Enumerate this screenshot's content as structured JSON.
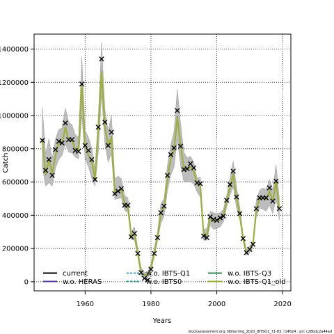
{
  "chart_data": {
    "type": "line",
    "title": "",
    "xlabel": "Years",
    "ylabel": "Catch",
    "xlim": [
      1944.5,
      2022.5
    ],
    "ylim": [
      -55000,
      1490000
    ],
    "xticks": [
      1960,
      1980,
      2000,
      2020
    ],
    "yticks": [
      0,
      200000,
      400000,
      600000,
      800000,
      1000000,
      1200000,
      1400000
    ],
    "ytick_labels": [
      "0",
      "200000",
      "400000",
      "600000",
      "800000",
      "1000000",
      "1200000",
      "1400000"
    ],
    "grid": true,
    "legend_position": "bottom-left",
    "x": [
      1947,
      1948,
      1949,
      1950,
      1951,
      1952,
      1953,
      1954,
      1955,
      1956,
      1957,
      1958,
      1959,
      1960,
      1961,
      1962,
      1963,
      1964,
      1965,
      1966,
      1967,
      1968,
      1969,
      1970,
      1971,
      1972,
      1973,
      1974,
      1975,
      1976,
      1977,
      1978,
      1979,
      1980,
      1981,
      1982,
      1983,
      1984,
      1985,
      1986,
      1987,
      1988,
      1989,
      1990,
      1991,
      1992,
      1993,
      1994,
      1995,
      1996,
      1997,
      1998,
      1999,
      2000,
      2001,
      2002,
      2003,
      2004,
      2005,
      2006,
      2007,
      2008,
      2009,
      2010,
      2011,
      2012,
      2013,
      2014,
      2015,
      2016,
      2017,
      2018,
      2019
    ],
    "observed_catch": [
      850000,
      670000,
      735000,
      640000,
      795000,
      845000,
      835000,
      955000,
      855000,
      855000,
      790000,
      785000,
      1190000,
      820000,
      790000,
      735000,
      615000,
      930000,
      1340000,
      960000,
      820000,
      900000,
      530000,
      545000,
      560000,
      460000,
      460000,
      270000,
      290000,
      170000,
      55000,
      20000,
      10000,
      75000,
      170000,
      265000,
      415000,
      455000,
      640000,
      765000,
      805000,
      1030000,
      815000,
      675000,
      680000,
      710000,
      685000,
      595000,
      590000,
      275000,
      265000,
      390000,
      375000,
      370000,
      385000,
      395000,
      490000,
      585000,
      665000,
      510000,
      410000,
      260000,
      175000,
      195000,
      225000,
      440000,
      505000,
      505000,
      505000,
      565000,
      485000,
      605000,
      440000
    ],
    "band": {
      "name": "confidence interval",
      "lower": [
        690000,
        575000,
        595000,
        575000,
        685000,
        735000,
        760000,
        830000,
        780000,
        775000,
        750000,
        740000,
        1000000,
        740000,
        690000,
        625000,
        575000,
        780000,
        1130000,
        830000,
        720000,
        770000,
        495000,
        500000,
        505000,
        430000,
        415000,
        255000,
        250000,
        150000,
        30000,
        25000,
        20000,
        60000,
        150000,
        245000,
        350000,
        395000,
        545000,
        640000,
        690000,
        860000,
        700000,
        600000,
        600000,
        600000,
        590000,
        540000,
        510000,
        250000,
        250000,
        340000,
        315000,
        320000,
        330000,
        360000,
        450000,
        520000,
        570000,
        445000,
        370000,
        240000,
        160000,
        175000,
        205000,
        390000,
        445000,
        435000,
        425000,
        460000,
        410000,
        500000,
        370000
      ],
      "upper": [
        1050000,
        770000,
        860000,
        740000,
        860000,
        915000,
        925000,
        1045000,
        960000,
        945000,
        885000,
        870000,
        1350000,
        910000,
        870000,
        805000,
        680000,
        995000,
        1440000,
        1040000,
        905000,
        1000000,
        620000,
        635000,
        620000,
        520000,
        505000,
        300000,
        330000,
        200000,
        85000,
        55000,
        60000,
        105000,
        200000,
        300000,
        470000,
        500000,
        700000,
        820000,
        905000,
        1160000,
        955000,
        780000,
        745000,
        755000,
        720000,
        625000,
        630000,
        315000,
        320000,
        425000,
        415000,
        410000,
        415000,
        435000,
        520000,
        625000,
        725000,
        570000,
        445000,
        285000,
        195000,
        215000,
        245000,
        490000,
        550000,
        565000,
        555000,
        615000,
        555000,
        705000,
        505000
      ]
    },
    "series": [
      {
        "name": "current",
        "color": "#000000",
        "dash": "solid",
        "values": [
          850000,
          645000,
          735000,
          650000,
          760000,
          840000,
          830000,
          930000,
          850000,
          850000,
          800000,
          790000,
          1180000,
          820000,
          760000,
          725000,
          620000,
          925000,
          1260000,
          935000,
          820000,
          870000,
          540000,
          545000,
          555000,
          470000,
          455000,
          275000,
          285000,
          170000,
          50000,
          40000,
          40000,
          80000,
          170000,
          270000,
          410000,
          450000,
          620000,
          740000,
          790000,
          990000,
          825000,
          680000,
          675000,
          690000,
          665000,
          590000,
          580000,
          285000,
          280000,
          385000,
          365000,
          365000,
          375000,
          400000,
          485000,
          570000,
          645000,
          510000,
          400000,
          260000,
          175000,
          195000,
          225000,
          435000,
          500000,
          505000,
          495000,
          545000,
          485000,
          600000,
          440000
        ]
      },
      {
        "name": "w.o. HERAS",
        "color": "#5a3ca0",
        "dash": "solid",
        "values": [
          848000,
          643000,
          733000,
          648000,
          758000,
          838000,
          828000,
          928000,
          848000,
          848000,
          798000,
          788000,
          1176000,
          818000,
          758000,
          723000,
          618000,
          921000,
          1252000,
          931000,
          818000,
          866000,
          538000,
          543000,
          553000,
          468000,
          453000,
          273000,
          283000,
          168000,
          48000,
          38000,
          38000,
          78000,
          168000,
          268000,
          406000,
          446000,
          616000,
          736000,
          786000,
          984000,
          821000,
          678000,
          673000,
          688000,
          663000,
          588000,
          578000,
          283000,
          278000,
          383000,
          363000,
          363000,
          373000,
          398000,
          483000,
          568000,
          641000,
          508000,
          398000,
          258000,
          173000,
          193000,
          223000,
          433000,
          498000,
          503000,
          493000,
          543000,
          483000,
          598000,
          438000
        ]
      },
      {
        "name": "w.o. IBTS-Q1",
        "color": "#3aa0d8",
        "dash": "dashed",
        "values": [
          851000,
          646000,
          736000,
          651000,
          761000,
          841000,
          831000,
          931000,
          851000,
          851000,
          801000,
          791000,
          1182000,
          821000,
          761000,
          726000,
          621000,
          927000,
          1263000,
          937000,
          821000,
          872000,
          541000,
          546000,
          556000,
          471000,
          456000,
          276000,
          286000,
          171000,
          51000,
          41000,
          41000,
          81000,
          171000,
          271000,
          411000,
          451000,
          622000,
          742000,
          792000,
          993000,
          827000,
          681000,
          676000,
          691000,
          666000,
          591000,
          581000,
          286000,
          281000,
          386000,
          366000,
          366000,
          376000,
          401000,
          486000,
          571000,
          647000,
          511000,
          401000,
          261000,
          176000,
          196000,
          226000,
          436000,
          501000,
          506000,
          496000,
          546000,
          486000,
          601000,
          441000
        ]
      },
      {
        "name": "w.o. IBTS0",
        "color": "#2a9d8f",
        "dash": "dashed",
        "values": [
          849000,
          644000,
          734000,
          649000,
          759000,
          839000,
          829000,
          929000,
          849000,
          849000,
          799000,
          789000,
          1178000,
          819000,
          759000,
          724000,
          619000,
          923000,
          1256000,
          933000,
          819000,
          868000,
          539000,
          544000,
          554000,
          469000,
          454000,
          274000,
          284000,
          169000,
          49000,
          39000,
          39000,
          79000,
          169000,
          269000,
          408000,
          448000,
          618000,
          738000,
          788000,
          987000,
          823000,
          679000,
          674000,
          689000,
          664000,
          589000,
          579000,
          284000,
          279000,
          384000,
          364000,
          364000,
          374000,
          399000,
          484000,
          569000,
          643000,
          509000,
          399000,
          259000,
          174000,
          194000,
          224000,
          434000,
          499000,
          504000,
          494000,
          544000,
          484000,
          599000,
          439000
        ]
      },
      {
        "name": "w.o. IBTS-Q3",
        "color": "#2e8b57",
        "dash": "solid",
        "values": [
          852000,
          647000,
          737000,
          652000,
          762000,
          842000,
          832000,
          932000,
          852000,
          852000,
          802000,
          792000,
          1184000,
          822000,
          762000,
          727000,
          622000,
          929000,
          1266000,
          939000,
          822000,
          874000,
          542000,
          547000,
          557000,
          472000,
          457000,
          277000,
          287000,
          172000,
          52000,
          42000,
          42000,
          82000,
          172000,
          272000,
          412000,
          452000,
          624000,
          744000,
          794000,
          996000,
          829000,
          682000,
          677000,
          692000,
          667000,
          592000,
          582000,
          287000,
          282000,
          387000,
          367000,
          367000,
          377000,
          402000,
          487000,
          572000,
          649000,
          512000,
          402000,
          262000,
          177000,
          197000,
          227000,
          437000,
          502000,
          507000,
          497000,
          547000,
          487000,
          602000,
          442000
        ]
      },
      {
        "name": "w.o. IBTS-Q1_old",
        "color": "#a0b030",
        "dash": "solid",
        "values": [
          850000,
          645000,
          735000,
          650000,
          760000,
          840000,
          830000,
          930000,
          850000,
          850000,
          800000,
          790000,
          1180000,
          820000,
          760000,
          725000,
          620000,
          925000,
          1260000,
          935000,
          820000,
          870000,
          540000,
          545000,
          555000,
          470000,
          455000,
          275000,
          285000,
          170000,
          50000,
          40000,
          40000,
          80000,
          170000,
          270000,
          410000,
          450000,
          620000,
          740000,
          790000,
          990000,
          825000,
          680000,
          675000,
          690000,
          665000,
          590000,
          580000,
          285000,
          280000,
          385000,
          365000,
          365000,
          375000,
          400000,
          485000,
          570000,
          645000,
          510000,
          400000,
          260000,
          175000,
          195000,
          225000,
          435000,
          500000,
          505000,
          495000,
          545000,
          485000,
          600000,
          440000
        ]
      }
    ]
  },
  "footer": "stockassessment.org, NSherring_2020_IBTSQ1_71-83, r14624 , git: c28bdc2a44ad"
}
